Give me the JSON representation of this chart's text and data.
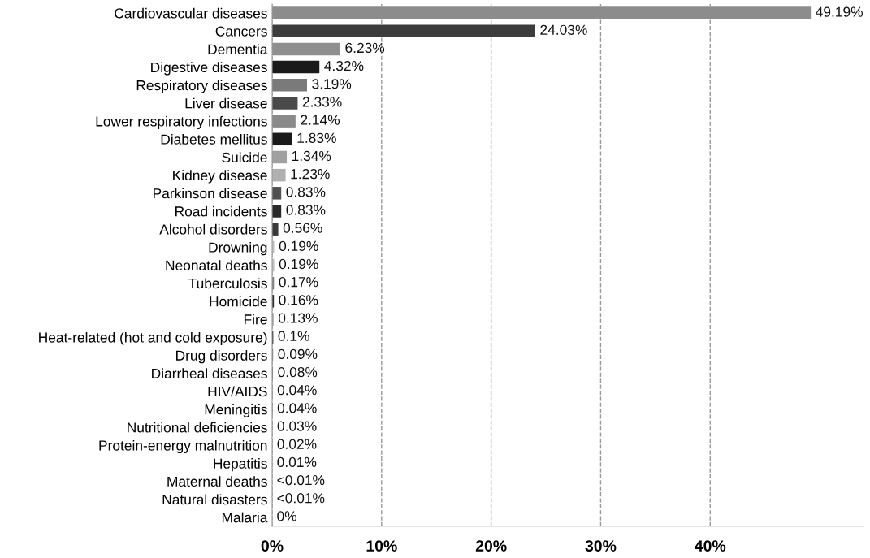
{
  "chart_data": {
    "type": "bar",
    "orientation": "horizontal",
    "categories": [
      "Cardiovascular diseases",
      "Cancers",
      "Dementia",
      "Digestive diseases",
      "Respiratory diseases",
      "Liver disease",
      "Lower respiratory infections",
      "Diabetes mellitus",
      "Suicide",
      "Kidney disease",
      "Parkinson disease",
      "Road incidents",
      "Alcohol disorders",
      "Drowning",
      "Neonatal deaths",
      "Tuberculosis",
      "Homicide",
      "Fire",
      "Heat-related (hot and cold exposure)",
      "Drug disorders",
      "Diarrheal diseases",
      "HIV/AIDS",
      "Meningitis",
      "Nutritional deficiencies",
      "Protein-energy malnutrition",
      "Hepatitis",
      "Maternal deaths",
      "Natural disasters",
      "Malaria"
    ],
    "values": [
      49.19,
      24.03,
      6.23,
      4.32,
      3.19,
      2.33,
      2.14,
      1.83,
      1.34,
      1.23,
      0.83,
      0.83,
      0.56,
      0.19,
      0.19,
      0.17,
      0.16,
      0.13,
      0.1,
      0.09,
      0.08,
      0.04,
      0.04,
      0.03,
      0.02,
      0.01,
      0.005,
      0.005,
      0
    ],
    "value_labels": [
      "49.19%",
      "24.03%",
      "6.23%",
      "4.32%",
      "3.19%",
      "2.33%",
      "2.14%",
      "1.83%",
      "1.34%",
      "1.23%",
      "0.83%",
      "0.83%",
      "0.56%",
      "0.19%",
      "0.19%",
      "0.17%",
      "0.16%",
      "0.13%",
      "0.1%",
      "0.09%",
      "0.08%",
      "0.04%",
      "0.04%",
      "0.03%",
      "0.02%",
      "0.01%",
      "<0.01%",
      "<0.01%",
      "0%"
    ],
    "colors": [
      "#8c8c8c",
      "#3c3c3c",
      "#8f8f8f",
      "#1a1a1a",
      "#7a7a7a",
      "#4a4a4a",
      "#8a8a8a",
      "#1a1a1a",
      "#a0a0a0",
      "#b0b0b0",
      "#505050",
      "#2a2a2a",
      "#3a3a3a",
      "#c0c0c0",
      "#c0c0c0",
      "#808080",
      "#303030",
      "#a0a0a0",
      "#202020",
      "#808080",
      "#808080",
      "#808080",
      "#808080",
      "#808080",
      "#808080",
      "#808080",
      "#808080",
      "#808080",
      "#808080"
    ],
    "xlim": [
      0,
      54
    ],
    "xticks": [
      {
        "value": 0,
        "label": "0%"
      },
      {
        "value": 10,
        "label": "10%"
      },
      {
        "value": 20,
        "label": "20%"
      },
      {
        "value": 30,
        "label": "30%"
      },
      {
        "value": 40,
        "label": "40%"
      }
    ],
    "grid": "x",
    "line_style": "dashed"
  }
}
